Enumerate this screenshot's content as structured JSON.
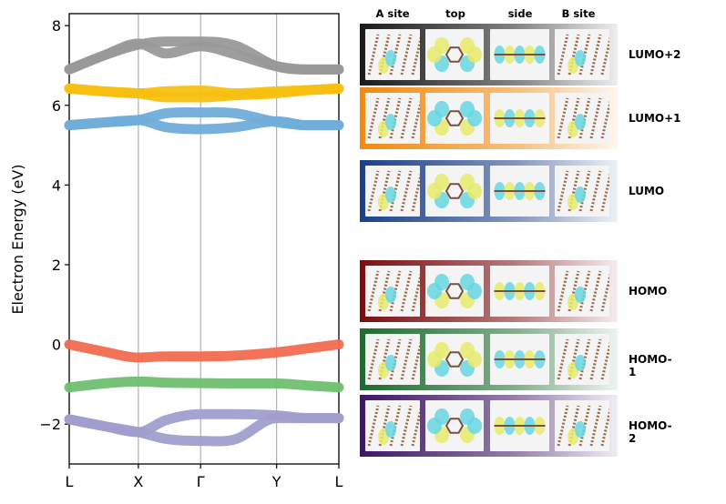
{
  "chart_data": {
    "type": "line",
    "title": "",
    "xlabel": "",
    "ylabel": "Electron Energy (eV)",
    "ylim": [
      -3.0,
      8.3
    ],
    "yticks": [
      -2,
      0,
      2,
      4,
      6,
      8
    ],
    "ytick_labels": [
      "−2",
      "0",
      "2",
      "4",
      "6",
      "8"
    ],
    "kpoints": [
      "L",
      "X",
      "Γ",
      "Y",
      "L"
    ],
    "kpoint_positions": [
      0,
      1,
      1.9,
      3.0,
      3.9
    ],
    "grid": "vertical lines at high-symmetry points",
    "series": [
      {
        "name": "HOMO-2 a",
        "color": "#a09ecc",
        "x": [
          0,
          0.5,
          1,
          1.4,
          1.9,
          2.4,
          3.0,
          3.45,
          3.9
        ],
        "y": [
          -1.88,
          -2.05,
          -2.2,
          -1.9,
          -1.75,
          -1.75,
          -1.78,
          -1.85,
          -1.85
        ]
      },
      {
        "name": "HOMO-2 b",
        "color": "#a09ecc",
        "x": [
          0,
          0.5,
          1,
          1.4,
          1.9,
          2.4,
          3.0,
          3.45,
          3.9
        ],
        "y": [
          -1.88,
          -2.05,
          -2.2,
          -2.37,
          -2.42,
          -2.38,
          -1.85,
          -1.85,
          -1.85
        ]
      },
      {
        "name": "HOMO-1",
        "color": "#6fbf70",
        "x": [
          0,
          0.5,
          1,
          1.4,
          1.9,
          2.4,
          3.0,
          3.45,
          3.9
        ],
        "y": [
          -1.08,
          -0.98,
          -0.93,
          -0.96,
          -0.97,
          -0.98,
          -0.98,
          -1.03,
          -1.08
        ]
      },
      {
        "name": "HOMO",
        "color": "#f26c4f",
        "x": [
          0,
          0.5,
          1,
          1.4,
          1.9,
          2.4,
          3.0,
          3.45,
          3.9
        ],
        "y": [
          0.0,
          -0.18,
          -0.33,
          -0.3,
          -0.3,
          -0.28,
          -0.2,
          -0.1,
          0.0
        ]
      },
      {
        "name": "LUMO a",
        "color": "#70add9",
        "x": [
          0,
          0.5,
          1,
          1.4,
          1.9,
          2.4,
          3.0,
          3.45,
          3.9
        ],
        "y": [
          5.5,
          5.57,
          5.63,
          5.8,
          5.82,
          5.8,
          5.58,
          5.5,
          5.5
        ]
      },
      {
        "name": "LUMO b",
        "color": "#70add9",
        "x": [
          0,
          0.5,
          1,
          1.4,
          1.9,
          2.4,
          3.0,
          3.45,
          3.9
        ],
        "y": [
          5.5,
          5.57,
          5.63,
          5.45,
          5.4,
          5.45,
          5.6,
          5.5,
          5.5
        ]
      },
      {
        "name": "LUMO+1 a",
        "color": "#f7c011",
        "x": [
          0,
          0.5,
          1,
          1.4,
          1.9,
          2.4,
          3.0,
          3.45,
          3.9
        ],
        "y": [
          6.42,
          6.35,
          6.3,
          6.35,
          6.37,
          6.3,
          6.35,
          6.38,
          6.42
        ]
      },
      {
        "name": "LUMO+1 b",
        "color": "#f7c011",
        "x": [
          0,
          0.5,
          1,
          1.4,
          1.9,
          2.4,
          3.0,
          3.45,
          3.9
        ],
        "y": [
          6.42,
          6.35,
          6.3,
          6.2,
          6.2,
          6.25,
          6.3,
          6.38,
          6.42
        ]
      },
      {
        "name": "LUMO+2 a",
        "color": "#999999",
        "x": [
          0,
          0.5,
          1,
          1.4,
          1.9,
          2.4,
          3.0,
          3.45,
          3.9
        ],
        "y": [
          6.9,
          7.25,
          7.52,
          7.6,
          7.6,
          7.5,
          6.98,
          6.9,
          6.9
        ]
      },
      {
        "name": "LUMO+2 b",
        "color": "#999999",
        "x": [
          0,
          0.5,
          1,
          1.4,
          1.9,
          2.4,
          3.0,
          3.45,
          3.9
        ],
        "y": [
          6.9,
          7.25,
          7.55,
          7.3,
          7.48,
          7.28,
          6.98,
          6.9,
          6.9
        ]
      }
    ]
  },
  "orbitals": {
    "column_headers": [
      "A site",
      "top",
      "side",
      "B site"
    ],
    "rows": [
      {
        "label": "LUMO+2",
        "color": "#1a1a1a"
      },
      {
        "label": "LUMO+1",
        "color": "#f08a10"
      },
      {
        "label": "LUMO",
        "color": "#1b3f8a"
      },
      {
        "label": "HOMO",
        "color": "#7a0d10"
      },
      {
        "label": "HOMO-1",
        "color": "#1d6b2e"
      },
      {
        "label": "HOMO-2",
        "color": "#3d1566"
      }
    ]
  }
}
